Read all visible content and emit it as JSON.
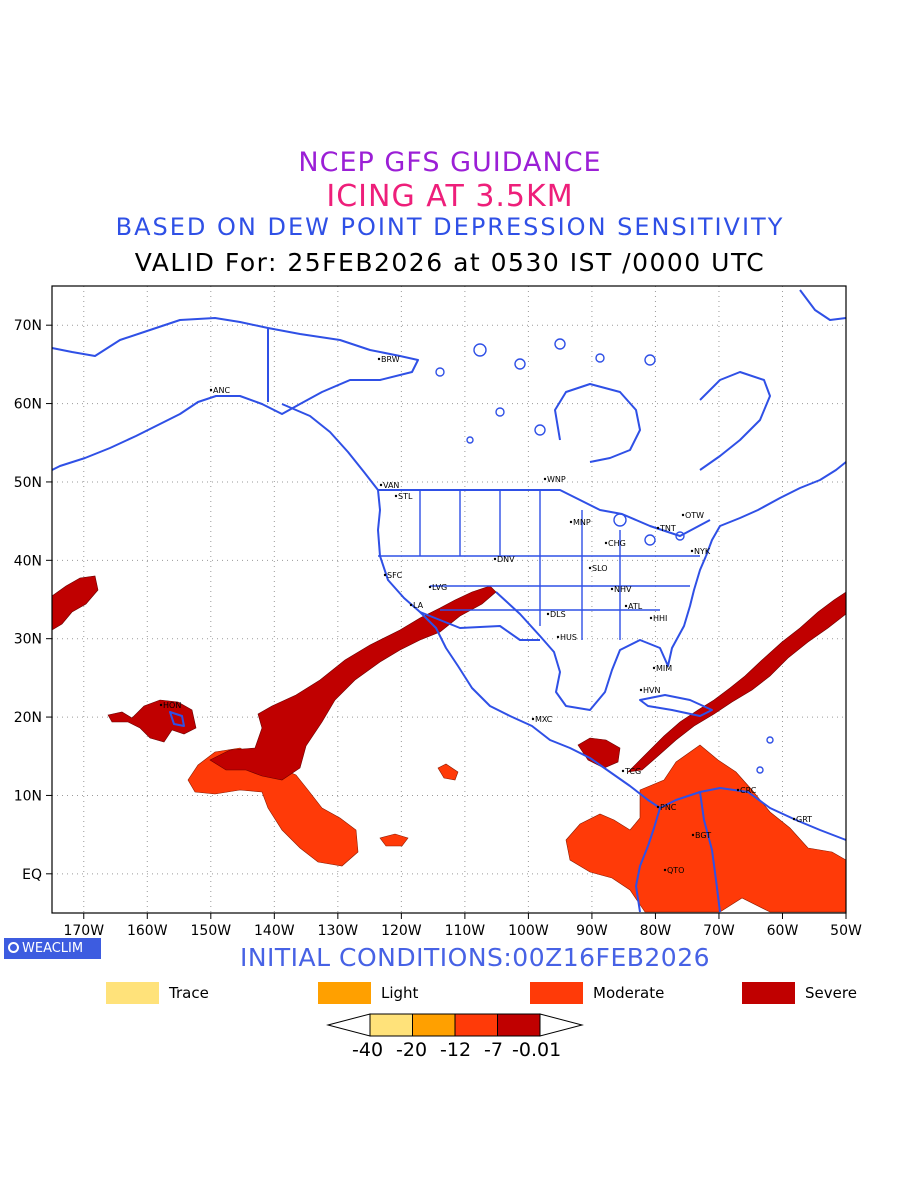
{
  "header": {
    "line1": "NCEP GFS GUIDANCE",
    "line2": "ICING AT 3.5KM",
    "line3": "BASED ON DEW POINT DEPRESSION SENSITIVITY",
    "line4": "VALID For: 25FEB2026 at 0530 IST /0000 UTC"
  },
  "map": {
    "lon_range": [
      -175,
      -50
    ],
    "lat_range": [
      -5,
      75
    ],
    "x_ticks": [
      "170W",
      "160W",
      "150W",
      "140W",
      "130W",
      "120W",
      "110W",
      "100W",
      "90W",
      "80W",
      "70W",
      "60W",
      "50W"
    ],
    "y_ticks": [
      "EQ",
      "10N",
      "20N",
      "30N",
      "40N",
      "50N",
      "60N",
      "70N"
    ],
    "cities": [
      "BRW",
      "ANC",
      "VAN",
      "STL",
      "WNP",
      "OTW",
      "MNP",
      "TNT",
      "CHG",
      "NYK",
      "DNV",
      "SFC",
      "SLO",
      "LVG",
      "NHV",
      "LA",
      "ATL",
      "DLS",
      "HHI",
      "HUS",
      "MIM",
      "HVN",
      "HON",
      "MXC",
      "PNC",
      "CRC",
      "GRT",
      "BGT",
      "QTO",
      "TCG"
    ]
  },
  "footer": {
    "badge": "WEACLIM",
    "initial_conditions": "INITIAL CONDITIONS:00Z16FEB2026"
  },
  "legend": [
    {
      "label": "Trace",
      "color": "#ffe27a"
    },
    {
      "label": "Light",
      "color": "#ffa000"
    },
    {
      "label": "Moderate",
      "color": "#ff3a08"
    },
    {
      "label": "Severe",
      "color": "#c00000"
    }
  ],
  "colorbar": {
    "colors": [
      "#ffe27a",
      "#ffa000",
      "#ff3a08",
      "#c00000"
    ],
    "labels": [
      "-40",
      "-20",
      "-12",
      "-7",
      "-0.01"
    ]
  },
  "colors": {
    "coast": "#2f50e6",
    "moderate": "#ff3a08",
    "severe": "#c00000"
  }
}
